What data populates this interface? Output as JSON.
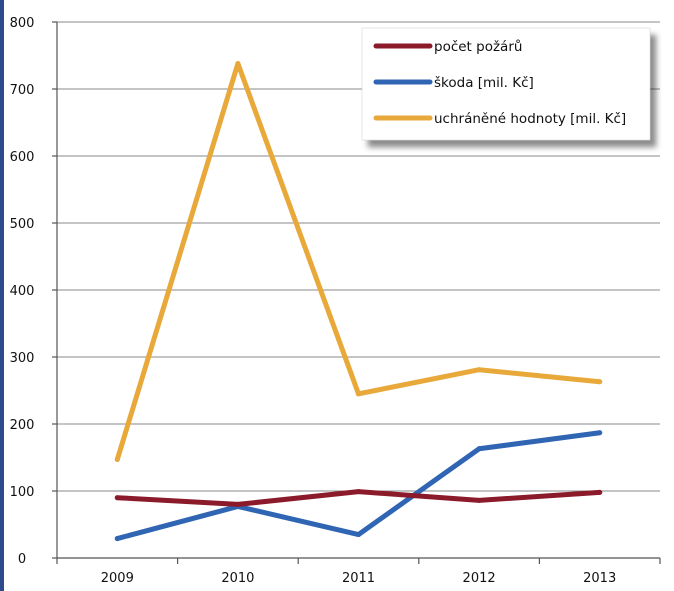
{
  "chart_data": {
    "type": "line",
    "categories": [
      "2009",
      "2010",
      "2011",
      "2012",
      "2013"
    ],
    "ylim": [
      0,
      800
    ],
    "yticks": [
      "0",
      "100",
      "200",
      "300",
      "400",
      "500",
      "600",
      "700",
      "800"
    ],
    "grid": true,
    "legend_position": "top-right",
    "series": [
      {
        "name": "počet požárů",
        "values": [
          90,
          80,
          99,
          86,
          98
        ],
        "color": "#8b1a2b"
      },
      {
        "name": "škoda [mil. Kč]",
        "values": [
          29,
          77,
          35,
          163,
          187
        ],
        "color": "#2f65b3"
      },
      {
        "name": "uchráněné hodnoty [mil. Kč]",
        "values": [
          147,
          738,
          245,
          281,
          263
        ],
        "color": "#e8a93a"
      }
    ]
  },
  "colors": {
    "left_bar": "#2c4a8c",
    "grid": "#8a8a8a",
    "header_text": "#d43a2a"
  }
}
